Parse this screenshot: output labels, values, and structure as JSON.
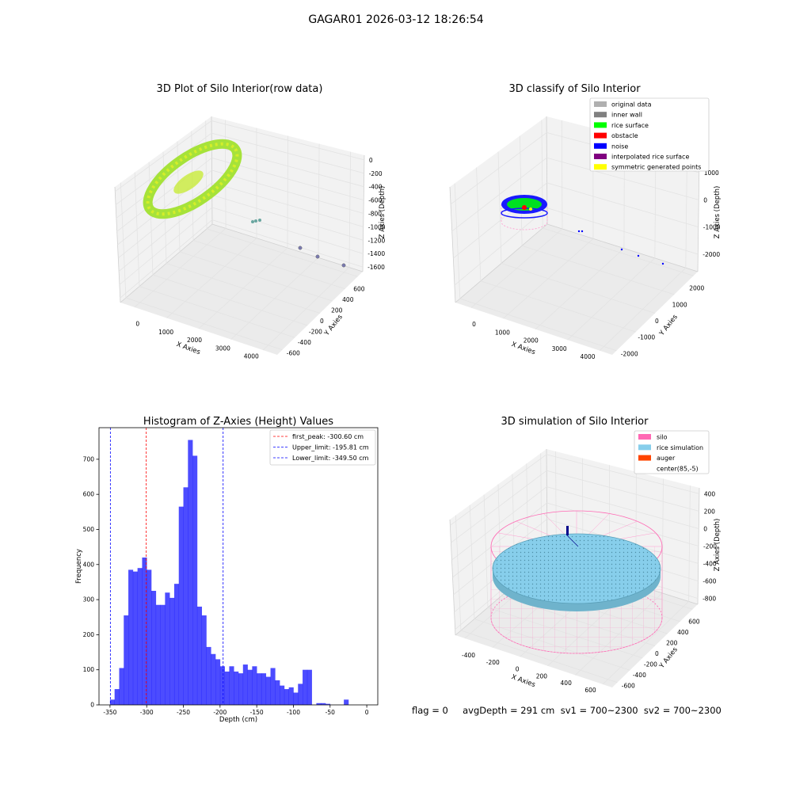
{
  "suptitle": "GAGAR01 2026-03-12 18:26:54",
  "footer": "flag = 0     avgDepth = 291 cm  sv1 = 700~2300  sv2 = 700~2300",
  "chart_data": [
    {
      "type": "scatter",
      "title": "3D Plot of Silo Interior(row data)",
      "xlabel": "X Axies",
      "ylabel": "Y Axies",
      "zlabel": "Z Axies (Depth)",
      "x_ticks": [
        "0",
        "1000",
        "2000",
        "3000",
        "4000"
      ],
      "y_ticks": [
        "-600",
        "-400",
        "-200",
        "0",
        "200",
        "400",
        "600"
      ],
      "z_ticks": [
        "0",
        "-200",
        "-400",
        "-600",
        "-800",
        "-1000",
        "-1200",
        "-1400",
        "-1600"
      ],
      "outliers": [
        {
          "x": 1750,
          "y": -150,
          "z": -1000
        },
        {
          "x": 2450,
          "y": -350,
          "z": -1450
        },
        {
          "x": 3400,
          "y": -300,
          "z": -1550
        },
        {
          "x": 4050,
          "y": -350,
          "z": -1700
        }
      ]
    },
    {
      "type": "scatter",
      "title": "3D classify of Silo Interior",
      "xlabel": "X Axies",
      "ylabel": "Y Axies",
      "zlabel": "Z Axies (Depth)",
      "x_ticks": [
        "0",
        "1000",
        "2000",
        "3000",
        "4000"
      ],
      "y_ticks": [
        "-2000",
        "-1000",
        "0",
        "1000",
        "2000"
      ],
      "z_ticks": [
        "1000",
        "0",
        "-1000",
        "-2000"
      ],
      "legend": [
        {
          "label": "original data",
          "color": "#b0b0b0"
        },
        {
          "label": "inner wall",
          "color": "#808080"
        },
        {
          "label": "rice surface",
          "color": "#00ff00"
        },
        {
          "label": "obstacle",
          "color": "#ff0000"
        },
        {
          "label": "noise",
          "color": "#0000ff"
        },
        {
          "label": "interpolated rice surface",
          "color": "#800080"
        },
        {
          "label": "symmetric generated points",
          "color": "#ffff00"
        }
      ]
    },
    {
      "type": "bar",
      "title": "Histogram of Z-Axies (Height) Values",
      "xlabel": "Depth (cm)",
      "ylabel": "Frequency",
      "xlim": [
        -365,
        15
      ],
      "ylim": [
        0,
        790
      ],
      "x_ticks": [
        -350,
        -300,
        -250,
        -200,
        -150,
        -100,
        -50,
        0
      ],
      "y_ticks": [
        0,
        100,
        200,
        300,
        400,
        500,
        600,
        700
      ],
      "bin_start": -350,
      "bin_width": 6.25,
      "values": [
        15,
        45,
        105,
        255,
        385,
        380,
        390,
        420,
        385,
        325,
        285,
        285,
        320,
        305,
        345,
        565,
        620,
        755,
        710,
        280,
        255,
        165,
        145,
        130,
        110,
        95,
        110,
        95,
        90,
        115,
        100,
        110,
        90,
        90,
        80,
        105,
        70,
        55,
        45,
        50,
        35,
        60,
        100,
        100,
        0,
        5,
        5,
        3,
        0,
        0,
        0,
        15
      ],
      "color": "#0000ff",
      "lines": [
        {
          "x": -300.6,
          "color": "#ff0000",
          "label": "first_peak: -300.60 cm"
        },
        {
          "x": -195.81,
          "color": "#0000ff",
          "label": "Upper_limit: -195.81 cm"
        },
        {
          "x": -349.5,
          "color": "#0000ff",
          "label": "Lower_limit: -349.50 cm"
        }
      ]
    },
    {
      "type": "scatter",
      "title": "3D simulation of Silo Interior",
      "xlabel": "X Axies",
      "ylabel": "Y Axies",
      "zlabel": "Z Axies (Depth)",
      "x_ticks": [
        "-400",
        "-200",
        "0",
        "200",
        "400",
        "600"
      ],
      "y_ticks": [
        "-600",
        "-400",
        "-200",
        "0",
        "200",
        "400",
        "600"
      ],
      "z_ticks": [
        "400",
        "200",
        "0",
        "-200",
        "-400",
        "-600",
        "-800"
      ],
      "legend": [
        {
          "label": "silo",
          "color": "#ff69b4"
        },
        {
          "label": "rice simulation",
          "color": "#87ceeb"
        },
        {
          "label": "auger",
          "color": "#ff4500"
        },
        {
          "label": "center(85,-5)",
          "color": ""
        }
      ]
    }
  ]
}
